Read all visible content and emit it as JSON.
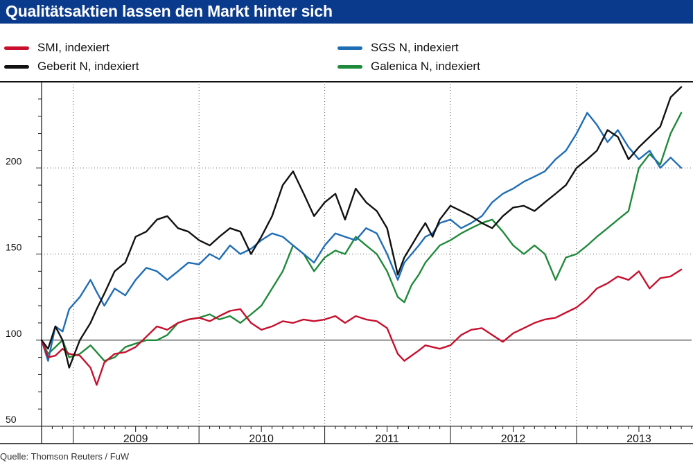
{
  "title": "Qualitätsaktien lassen den Markt hinter sich",
  "source": "Quelle: Thomson Reuters / FuW",
  "colors": {
    "title_bg": "#0a3a8c",
    "title_text": "#ffffff"
  },
  "chart_data": {
    "type": "line",
    "title": "Qualitätsaktien lassen den Markt hinter sich",
    "xlabel": "",
    "ylabel": "",
    "x_categories": [
      "2009",
      "2010",
      "2011",
      "2012",
      "2013"
    ],
    "x_range": [
      "2008-10",
      "2013-12"
    ],
    "ylim": [
      50,
      250
    ],
    "y_ticks": [
      50,
      100,
      150,
      200
    ],
    "y_tick_labels": [
      "50",
      "100",
      "150",
      "200"
    ],
    "grid": "dotted horizontal at 150 and 200, dotted vertical at year boundaries",
    "legend_position": "top",
    "series": [
      {
        "name": "SMI, indexiert",
        "color": "#c8102e",
        "x": [
          "2008-10-01",
          "2008-10-20",
          "2008-11-10",
          "2008-12-01",
          "2008-12-20",
          "2009-01-20",
          "2009-02-20",
          "2009-03-10",
          "2009-04-01",
          "2009-05-01",
          "2009-06-01",
          "2009-07-01",
          "2009-08-01",
          "2009-09-01",
          "2009-10-01",
          "2009-11-01",
          "2009-12-01",
          "2010-01-01",
          "2010-02-01",
          "2010-03-01",
          "2010-04-01",
          "2010-05-01",
          "2010-06-01",
          "2010-07-01",
          "2010-08-01",
          "2010-09-01",
          "2010-10-01",
          "2010-11-01",
          "2010-12-01",
          "2011-01-01",
          "2011-02-01",
          "2011-03-01",
          "2011-04-01",
          "2011-05-01",
          "2011-06-01",
          "2011-07-01",
          "2011-08-01",
          "2011-08-20",
          "2011-09-10",
          "2011-10-01",
          "2011-10-20",
          "2011-11-10",
          "2011-12-01",
          "2012-01-01",
          "2012-02-01",
          "2012-03-01",
          "2012-04-01",
          "2012-05-01",
          "2012-06-01",
          "2012-07-01",
          "2012-08-01",
          "2012-09-01",
          "2012-10-01",
          "2012-11-01",
          "2012-12-01",
          "2013-01-01",
          "2013-02-01",
          "2013-03-01",
          "2013-04-01",
          "2013-05-01",
          "2013-06-01",
          "2013-07-01",
          "2013-08-01",
          "2013-09-01",
          "2013-10-01",
          "2013-11-01"
        ],
        "values": [
          100,
          90,
          91,
          95,
          92,
          91,
          84,
          74,
          87,
          92,
          93,
          96,
          102,
          108,
          106,
          110,
          112,
          113,
          111,
          114,
          117,
          118,
          110,
          106,
          108,
          111,
          110,
          112,
          111,
          112,
          114,
          110,
          114,
          112,
          111,
          107,
          92,
          88,
          91,
          94,
          97,
          96,
          95,
          97,
          103,
          106,
          107,
          103,
          99,
          104,
          107,
          110,
          112,
          113,
          116,
          119,
          124,
          130,
          133,
          137,
          135,
          140,
          130,
          136,
          137,
          141
        ]
      },
      {
        "name": "Geberit N, indexiert",
        "color": "#111111",
        "x": [
          "2008-10-01",
          "2008-10-20",
          "2008-11-10",
          "2008-12-01",
          "2008-12-20",
          "2009-01-20",
          "2009-02-20",
          "2009-03-10",
          "2009-04-01",
          "2009-05-01",
          "2009-06-01",
          "2009-07-01",
          "2009-08-01",
          "2009-09-01",
          "2009-10-01",
          "2009-11-01",
          "2009-12-01",
          "2010-01-01",
          "2010-02-01",
          "2010-03-01",
          "2010-04-01",
          "2010-05-01",
          "2010-06-01",
          "2010-07-01",
          "2010-08-01",
          "2010-09-01",
          "2010-10-01",
          "2010-11-01",
          "2010-12-01",
          "2011-01-01",
          "2011-02-01",
          "2011-03-01",
          "2011-04-01",
          "2011-05-01",
          "2011-06-01",
          "2011-07-01",
          "2011-08-01",
          "2011-08-20",
          "2011-09-10",
          "2011-10-01",
          "2011-10-20",
          "2011-11-10",
          "2011-12-01",
          "2012-01-01",
          "2012-02-01",
          "2012-03-01",
          "2012-04-01",
          "2012-05-01",
          "2012-06-01",
          "2012-07-01",
          "2012-08-01",
          "2012-09-01",
          "2012-10-01",
          "2012-11-01",
          "2012-12-01",
          "2013-01-01",
          "2013-02-01",
          "2013-03-01",
          "2013-04-01",
          "2013-05-01",
          "2013-06-01",
          "2013-07-01",
          "2013-08-01",
          "2013-09-01",
          "2013-10-01",
          "2013-11-01"
        ],
        "values": [
          100,
          95,
          108,
          100,
          84,
          100,
          110,
          118,
          127,
          140,
          145,
          160,
          163,
          170,
          172,
          165,
          163,
          158,
          155,
          160,
          165,
          163,
          150,
          160,
          172,
          190,
          198,
          185,
          172,
          180,
          185,
          170,
          188,
          180,
          175,
          165,
          138,
          148,
          155,
          162,
          168,
          160,
          170,
          178,
          175,
          172,
          168,
          165,
          172,
          177,
          178,
          175,
          180,
          185,
          190,
          200,
          205,
          210,
          222,
          218,
          205,
          212,
          218,
          224,
          241,
          247
        ]
      },
      {
        "name": "SGS N, indexiert",
        "color": "#1f6db5",
        "x": [
          "2008-10-01",
          "2008-10-20",
          "2008-11-10",
          "2008-12-01",
          "2008-12-20",
          "2009-01-20",
          "2009-02-20",
          "2009-03-10",
          "2009-04-01",
          "2009-05-01",
          "2009-06-01",
          "2009-07-01",
          "2009-08-01",
          "2009-09-01",
          "2009-10-01",
          "2009-11-01",
          "2009-12-01",
          "2010-01-01",
          "2010-02-01",
          "2010-03-01",
          "2010-04-01",
          "2010-05-01",
          "2010-06-01",
          "2010-07-01",
          "2010-08-01",
          "2010-09-01",
          "2010-10-01",
          "2010-11-01",
          "2010-12-01",
          "2011-01-01",
          "2011-02-01",
          "2011-03-01",
          "2011-04-01",
          "2011-05-01",
          "2011-06-01",
          "2011-07-01",
          "2011-08-01",
          "2011-08-20",
          "2011-09-10",
          "2011-10-01",
          "2011-10-20",
          "2011-11-10",
          "2011-12-01",
          "2012-01-01",
          "2012-02-01",
          "2012-03-01",
          "2012-04-01",
          "2012-05-01",
          "2012-06-01",
          "2012-07-01",
          "2012-08-01",
          "2012-09-01",
          "2012-10-01",
          "2012-11-01",
          "2012-12-01",
          "2013-01-01",
          "2013-02-01",
          "2013-03-01",
          "2013-04-01",
          "2013-05-01",
          "2013-06-01",
          "2013-07-01",
          "2013-08-01",
          "2013-09-01",
          "2013-10-01",
          "2013-11-01"
        ],
        "values": [
          100,
          88,
          108,
          105,
          118,
          125,
          135,
          128,
          120,
          130,
          126,
          135,
          142,
          140,
          135,
          140,
          145,
          144,
          150,
          147,
          155,
          150,
          153,
          158,
          162,
          160,
          155,
          150,
          145,
          155,
          162,
          160,
          158,
          165,
          162,
          150,
          135,
          145,
          150,
          155,
          160,
          162,
          168,
          170,
          165,
          168,
          172,
          180,
          185,
          188,
          192,
          195,
          198,
          205,
          210,
          220,
          232,
          225,
          215,
          222,
          212,
          205,
          210,
          200,
          206,
          200
        ]
      },
      {
        "name": "Galenica N, indexiert",
        "color": "#1f8a3a",
        "x": [
          "2008-10-01",
          "2008-10-20",
          "2008-11-10",
          "2008-12-01",
          "2008-12-20",
          "2009-01-20",
          "2009-02-20",
          "2009-03-10",
          "2009-04-01",
          "2009-05-01",
          "2009-06-01",
          "2009-07-01",
          "2009-08-01",
          "2009-09-01",
          "2009-10-01",
          "2009-11-01",
          "2009-12-01",
          "2010-01-01",
          "2010-02-01",
          "2010-03-01",
          "2010-04-01",
          "2010-05-01",
          "2010-06-01",
          "2010-07-01",
          "2010-08-01",
          "2010-09-01",
          "2010-10-01",
          "2010-11-01",
          "2010-12-01",
          "2011-01-01",
          "2011-02-01",
          "2011-03-01",
          "2011-04-01",
          "2011-05-01",
          "2011-06-01",
          "2011-07-01",
          "2011-08-01",
          "2011-08-20",
          "2011-09-10",
          "2011-10-01",
          "2011-10-20",
          "2011-11-10",
          "2011-12-01",
          "2012-01-01",
          "2012-02-01",
          "2012-03-01",
          "2012-04-01",
          "2012-05-01",
          "2012-06-01",
          "2012-07-01",
          "2012-08-01",
          "2012-09-01",
          "2012-10-01",
          "2012-11-01",
          "2012-12-01",
          "2013-01-01",
          "2013-02-01",
          "2013-03-01",
          "2013-04-01",
          "2013-05-01",
          "2013-06-01",
          "2013-07-01",
          "2013-08-01",
          "2013-09-01",
          "2013-10-01",
          "2013-11-01"
        ],
        "values": [
          100,
          92,
          96,
          100,
          90,
          92,
          97,
          93,
          88,
          90,
          96,
          98,
          100,
          100,
          103,
          110,
          112,
          113,
          115,
          112,
          114,
          110,
          115,
          120,
          130,
          140,
          155,
          150,
          140,
          148,
          152,
          150,
          160,
          155,
          150,
          140,
          125,
          122,
          132,
          138,
          145,
          150,
          155,
          158,
          162,
          165,
          168,
          170,
          163,
          155,
          150,
          155,
          150,
          135,
          148,
          150,
          155,
          160,
          165,
          170,
          175,
          200,
          208,
          202,
          220,
          232
        ]
      }
    ]
  }
}
